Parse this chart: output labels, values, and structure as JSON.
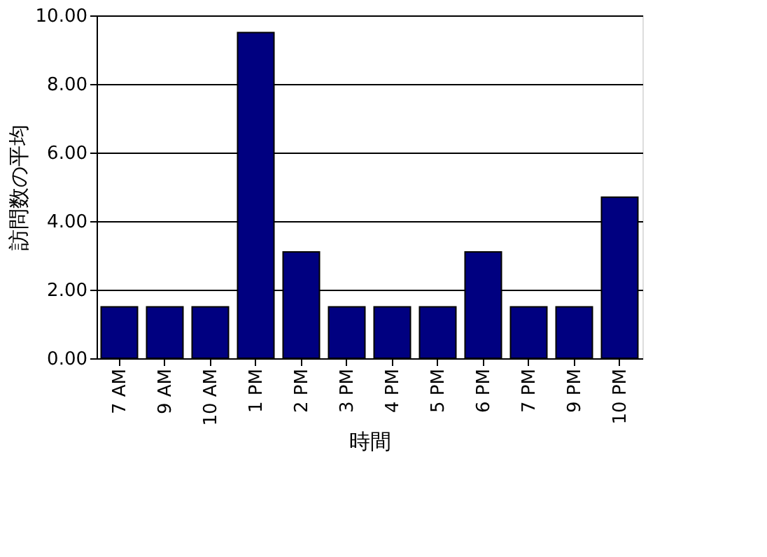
{
  "chart_data": {
    "type": "bar",
    "xlabel": "時間",
    "ylabel": "訪問数の平均",
    "categories": [
      "7 AM",
      "9 AM",
      "10 AM",
      "1 PM",
      "2 PM",
      "3 PM",
      "4 PM",
      "5 PM",
      "6 PM",
      "7 PM",
      "9 PM",
      "10 PM"
    ],
    "values": [
      1.5,
      1.5,
      1.5,
      9.5,
      3.1,
      1.5,
      1.5,
      1.5,
      3.1,
      1.5,
      1.5,
      4.7
    ],
    "color": "#000080",
    "ylim": [
      0,
      10
    ],
    "yticks": [
      {
        "value": 0,
        "label": "0.00"
      },
      {
        "value": 2,
        "label": "2.00"
      },
      {
        "value": 4,
        "label": "4.00"
      },
      {
        "value": 6,
        "label": "6.00"
      },
      {
        "value": 8,
        "label": "8.00"
      },
      {
        "value": 10,
        "label": "10.00"
      }
    ],
    "grid": "y"
  }
}
